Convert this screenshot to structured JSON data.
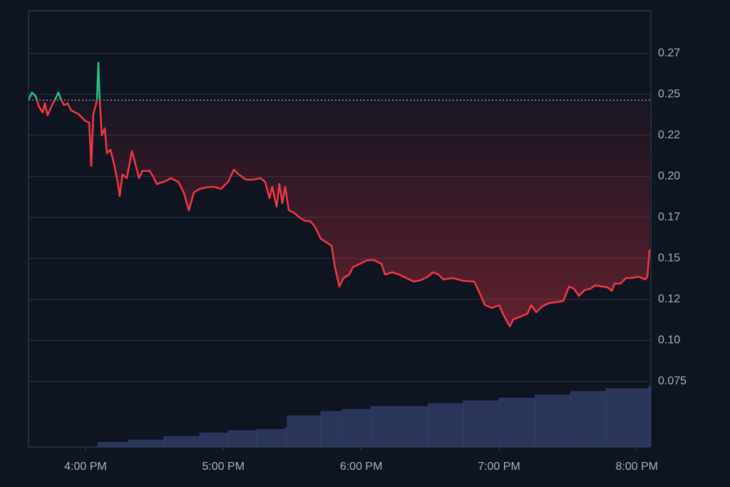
{
  "chart_data": {
    "type": "line",
    "x": [
      935.2,
      936.7,
      938.3,
      939.8,
      941.4,
      942.3,
      943.5,
      945.1,
      946.7,
      948.2,
      949.1,
      950.7,
      952.2,
      953.8,
      956.9,
      960,
      961.6,
      962.5,
      963.4,
      964.3,
      965,
      965.6,
      966.2,
      967.1,
      968.4,
      969.3,
      970.9,
      972.4,
      974,
      974.9,
      976.1,
      978,
      980.2,
      981.7,
      983.3,
      984.8,
      987.9,
      989.5,
      991,
      994.1,
      997.2,
      1000.4,
      1002.8,
      1005,
      1007.2,
      1009.7,
      1012.8,
      1015.9,
      1019,
      1022.1,
      1024.6,
      1026.7,
      1029.8,
      1032.9,
      1036.1,
      1038.2,
      1040.1,
      1041.3,
      1043.2,
      1044.4,
      1045.7,
      1046.9,
      1048.5,
      1050.6,
      1053.1,
      1055.6,
      1057.8,
      1059.9,
      1062.4,
      1064.9,
      1067.1,
      1068.6,
      1070.5,
      1072.3,
      1074.8,
      1076.4,
      1079.5,
      1082.6,
      1085.7,
      1088.8,
      1090.4,
      1093.5,
      1096.6,
      1099.7,
      1102.8,
      1105.9,
      1109,
      1111.2,
      1113.6,
      1115.8,
      1119.9,
      1124.5,
      1129.2,
      1131.4,
      1133.9,
      1137,
      1140,
      1142.5,
      1144.7,
      1146.2,
      1148.7,
      1152.4,
      1154,
      1156.2,
      1158.7,
      1161.8,
      1164.9,
      1168,
      1170.5,
      1172.6,
      1174.8,
      1177.3,
      1179.8,
      1181.9,
      1185,
      1187.2,
      1189.1,
      1190.3,
      1192.8,
      1195.3,
      1197.5,
      1200.6,
      1203.7,
      1204.6,
      1205.5
    ],
    "values": [
      0.2467,
      0.2511,
      0.2489,
      0.2424,
      0.2389,
      0.2446,
      0.2371,
      0.2424,
      0.2467,
      0.2511,
      0.2476,
      0.2433,
      0.2446,
      0.2402,
      0.238,
      0.2337,
      0.2328,
      0.2063,
      0.238,
      0.2424,
      0.2467,
      0.2693,
      0.2467,
      0.225,
      0.2293,
      0.2141,
      0.2163,
      0.2076,
      0.1967,
      0.188,
      0.2011,
      0.1989,
      0.2154,
      0.2076,
      0.1989,
      0.2033,
      0.2033,
      0.1998,
      0.1954,
      0.1967,
      0.1989,
      0.1967,
      0.1902,
      0.1793,
      0.1902,
      0.1924,
      0.1933,
      0.1937,
      0.1924,
      0.1967,
      0.2041,
      0.2011,
      0.198,
      0.198,
      0.1989,
      0.1967,
      0.1867,
      0.1937,
      0.1815,
      0.1954,
      0.1837,
      0.1937,
      0.1793,
      0.178,
      0.175,
      0.1728,
      0.1728,
      0.1693,
      0.162,
      0.1598,
      0.1576,
      0.1446,
      0.1328,
      0.138,
      0.1402,
      0.1446,
      0.1467,
      0.1489,
      0.1489,
      0.1467,
      0.1402,
      0.1415,
      0.1402,
      0.138,
      0.1359,
      0.1367,
      0.1389,
      0.1415,
      0.1402,
      0.1372,
      0.138,
      0.1363,
      0.1359,
      0.1293,
      0.1215,
      0.1198,
      0.1215,
      0.1141,
      0.1085,
      0.1128,
      0.1141,
      0.1163,
      0.1215,
      0.1172,
      0.1207,
      0.1228,
      0.1233,
      0.1241,
      0.1328,
      0.1315,
      0.1272,
      0.1307,
      0.1315,
      0.1337,
      0.1328,
      0.1324,
      0.1302,
      0.1346,
      0.1346,
      0.138,
      0.138,
      0.1389,
      0.1372,
      0.1389,
      0.1554
    ],
    "reference": 0.2465,
    "up_color": "#26c281",
    "down_color": "#f23645",
    "xlim": [
      935.2,
      1206.1
    ],
    "xticks": [
      {
        "value": 960,
        "label": "4:00 PM"
      },
      {
        "value": 1020,
        "label": "5:00 PM"
      },
      {
        "value": 1080,
        "label": "6:00 PM"
      },
      {
        "value": 1140,
        "label": "7:00 PM"
      },
      {
        "value": 1200,
        "label": "8:00 PM"
      }
    ],
    "ylim": [
      0.035,
      0.301
    ],
    "yticks": [
      0.075,
      {
        "value": 0.1,
        "label": "0.10"
      },
      {
        "value": 0.125,
        "label": "0.12"
      },
      0.15,
      {
        "value": 0.175,
        "label": "0.17"
      },
      {
        "value": 0.2,
        "label": "0.20"
      },
      {
        "value": 0.225,
        "label": "0.22"
      },
      0.25,
      {
        "value": 0.275,
        "label": "0.27"
      }
    ],
    "grid": true,
    "volume": {
      "color": "#2b3559",
      "x": [
        965.3,
        978.6,
        994.1,
        1009.7,
        1022.1,
        1034.5,
        1046.9,
        1047.8,
        1062.4,
        1071.7,
        1084.2,
        1109,
        1124.5,
        1140,
        1155.6,
        1171.1,
        1186.6,
        1205.2
      ],
      "values": [
        7,
        10,
        15,
        20,
        23,
        25,
        27,
        44,
        50,
        53,
        57,
        61,
        65,
        69,
        73,
        78,
        82,
        86
      ],
      "ylim": [
        0,
        100
      ]
    }
  }
}
